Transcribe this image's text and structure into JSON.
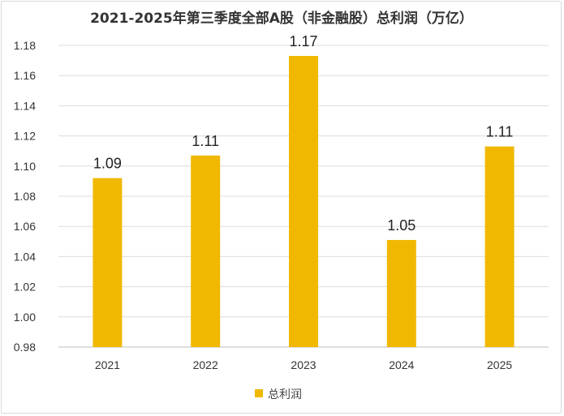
{
  "chart_data": {
    "type": "bar",
    "title": "2021-2025年第三季度全部A股（非金融股）总利润（万亿）",
    "categories": [
      "2021",
      "2022",
      "2023",
      "2024",
      "2025"
    ],
    "series": [
      {
        "name": "总利润",
        "values": [
          1.092,
          1.107,
          1.173,
          1.051,
          1.113
        ],
        "labels": [
          "1.09",
          "1.11",
          "1.17",
          "1.05",
          "1.11"
        ],
        "color": "#f0b800"
      }
    ],
    "ylim": [
      0.98,
      1.18
    ],
    "yticks": [
      "0.98",
      "1.00",
      "1.02",
      "1.04",
      "1.06",
      "1.08",
      "1.10",
      "1.12",
      "1.14",
      "1.16",
      "1.18"
    ],
    "xlabel": "",
    "ylabel": "",
    "grid": true,
    "legend": "bottom"
  }
}
